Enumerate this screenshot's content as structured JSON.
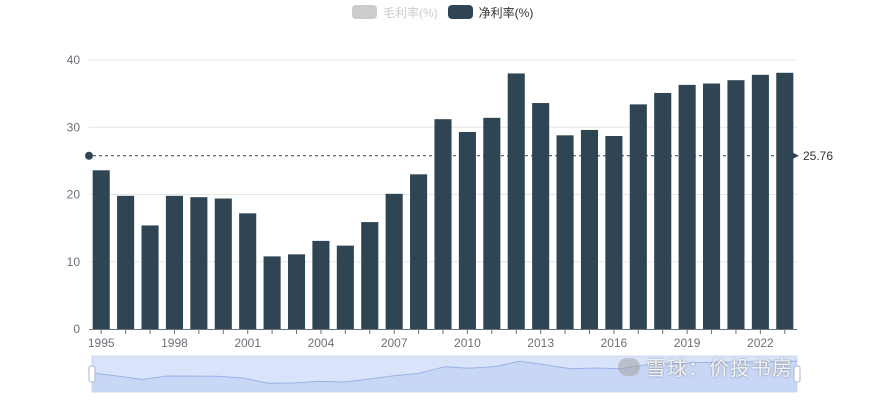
{
  "legend": {
    "items": [
      {
        "label": "毛利率(%)",
        "color": "#cccccc",
        "active": false
      },
      {
        "label": "净利率(%)",
        "color": "#2f4554",
        "active": true
      }
    ]
  },
  "chart_data": {
    "type": "bar",
    "x": [
      1995,
      1996,
      1997,
      1998,
      1999,
      2000,
      2001,
      2002,
      2003,
      2004,
      2005,
      2006,
      2007,
      2008,
      2009,
      2010,
      2011,
      2012,
      2013,
      2014,
      2015,
      2016,
      2017,
      2018,
      2019,
      2020,
      2021,
      2022,
      2023
    ],
    "x_tick_labels": [
      "1995",
      "1998",
      "2001",
      "2004",
      "2007",
      "2010",
      "2013",
      "2016",
      "2019",
      "2022"
    ],
    "series": [
      {
        "name": "净利率(%)",
        "color": "#2f4554",
        "values": [
          23.6,
          19.8,
          15.4,
          19.8,
          19.6,
          19.4,
          17.2,
          10.8,
          11.1,
          13.1,
          12.4,
          15.9,
          20.1,
          23.0,
          31.2,
          29.3,
          31.4,
          38.0,
          33.6,
          28.8,
          29.6,
          28.7,
          33.4,
          35.1,
          36.3,
          36.5,
          37.0,
          37.8,
          38.1
        ]
      }
    ],
    "mark_line": {
      "value": 25.76,
      "label": "25.76"
    },
    "y_ticks": [
      0,
      10,
      20,
      30,
      40
    ],
    "ylim": [
      0,
      40
    ],
    "grid": true,
    "legend_position": "top-center",
    "datazoom": {
      "type": "slider",
      "position": "bottom",
      "range": [
        0,
        100
      ]
    }
  },
  "watermark": {
    "text": "雪球：价投书房"
  }
}
